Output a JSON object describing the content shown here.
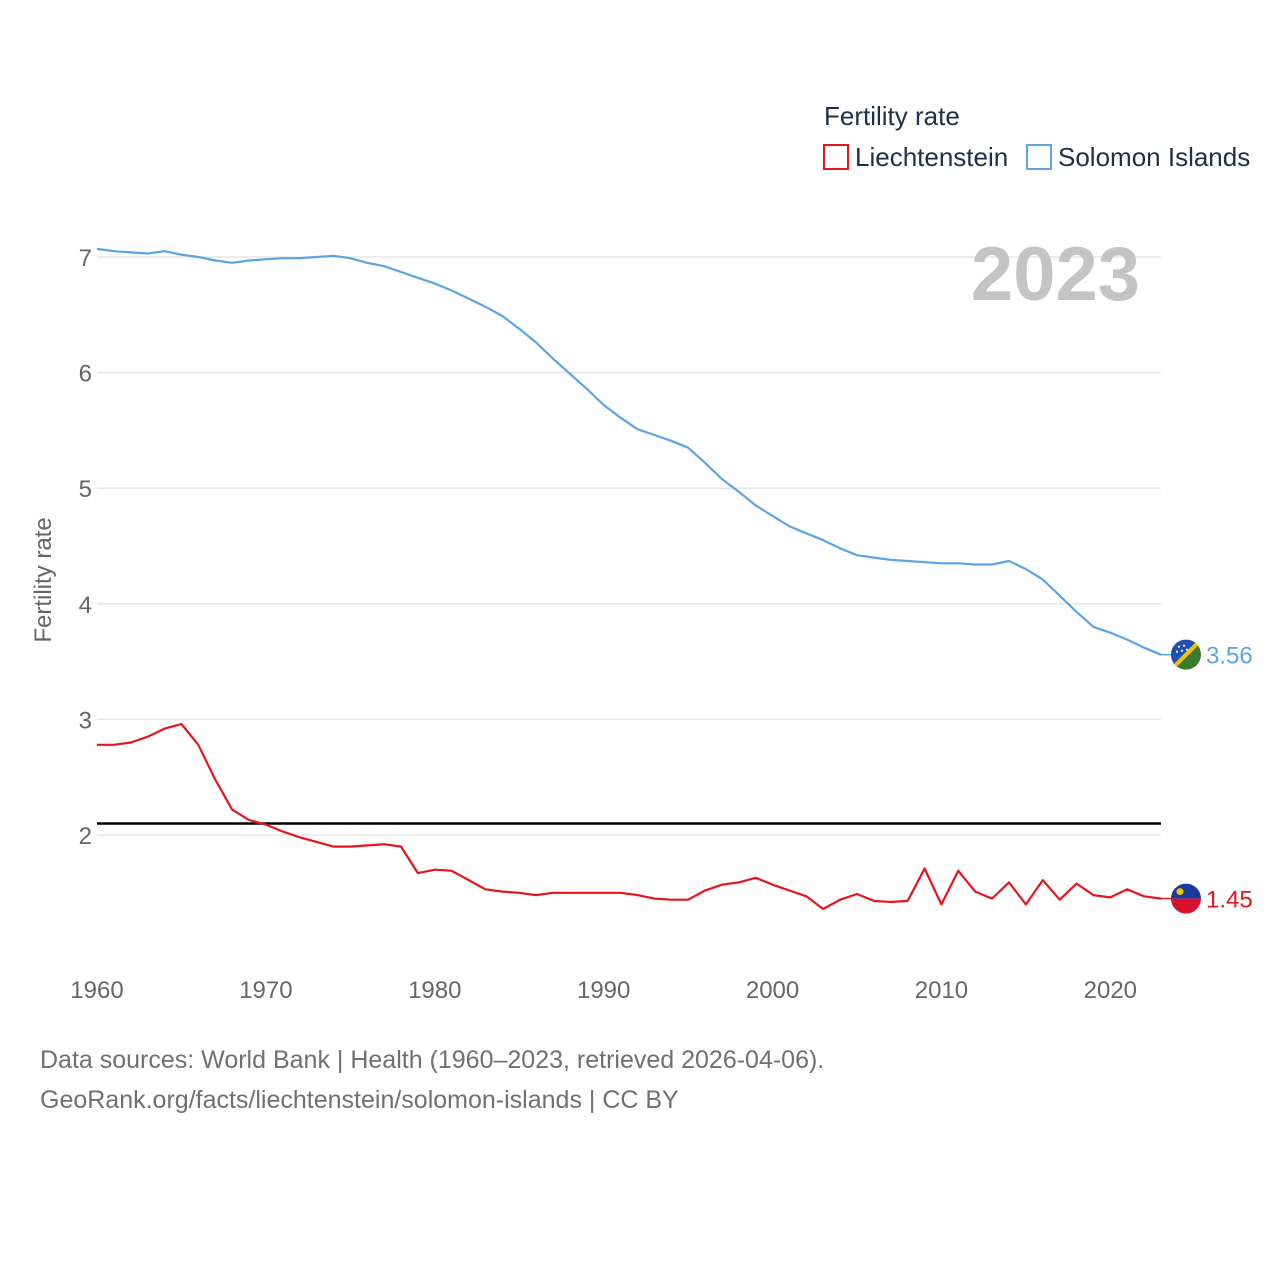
{
  "chart_data": {
    "type": "line",
    "title": "Fertility rate",
    "ylabel": "Fertility rate",
    "xlabel": "",
    "xlim": [
      1960,
      2023
    ],
    "ylim": [
      1,
      7.5
    ],
    "x_ticks": [
      1960,
      1970,
      1980,
      1990,
      2000,
      2010,
      2020
    ],
    "y_ticks": [
      2,
      3,
      4,
      5,
      6,
      7
    ],
    "grid": true,
    "legend_position": "top-right",
    "year_label": "2023",
    "reference_line": {
      "y": 2.1,
      "color": "#000000"
    },
    "x": [
      1960,
      1961,
      1962,
      1963,
      1964,
      1965,
      1966,
      1967,
      1968,
      1969,
      1970,
      1971,
      1972,
      1973,
      1974,
      1975,
      1976,
      1977,
      1978,
      1979,
      1980,
      1981,
      1982,
      1983,
      1984,
      1985,
      1986,
      1987,
      1988,
      1989,
      1990,
      1991,
      1992,
      1993,
      1994,
      1995,
      1996,
      1997,
      1998,
      1999,
      2000,
      2001,
      2002,
      2003,
      2004,
      2005,
      2006,
      2007,
      2008,
      2009,
      2010,
      2011,
      2012,
      2013,
      2014,
      2015,
      2016,
      2017,
      2018,
      2019,
      2020,
      2021,
      2022,
      2023
    ],
    "series": [
      {
        "name": "Liechtenstein",
        "color": "#e8141c",
        "end_label": "1.45",
        "flag": "liechtenstein-flag",
        "values": [
          2.78,
          2.78,
          2.8,
          2.85,
          2.92,
          2.96,
          2.78,
          2.48,
          2.22,
          2.13,
          2.09,
          2.03,
          1.98,
          1.94,
          1.9,
          1.9,
          1.91,
          1.92,
          1.9,
          1.67,
          1.7,
          1.69,
          1.61,
          1.53,
          1.51,
          1.5,
          1.48,
          1.5,
          1.5,
          1.5,
          1.5,
          1.5,
          1.48,
          1.45,
          1.44,
          1.44,
          1.52,
          1.57,
          1.59,
          1.63,
          1.57,
          1.52,
          1.47,
          1.36,
          1.44,
          1.49,
          1.43,
          1.42,
          1.43,
          1.71,
          1.4,
          1.69,
          1.51,
          1.45,
          1.59,
          1.4,
          1.61,
          1.44,
          1.58,
          1.48,
          1.46,
          1.53,
          1.47,
          1.45
        ]
      },
      {
        "name": "Solomon Islands",
        "color": "#5ba4e6",
        "end_label": "3.56",
        "flag": "solomon-islands-flag",
        "values": [
          7.07,
          7.05,
          7.04,
          7.03,
          7.05,
          7.02,
          7.0,
          6.97,
          6.95,
          6.97,
          6.98,
          6.99,
          6.99,
          7.0,
          7.01,
          6.99,
          6.95,
          6.92,
          6.87,
          6.82,
          6.77,
          6.71,
          6.64,
          6.57,
          6.49,
          6.38,
          6.26,
          6.12,
          5.99,
          5.86,
          5.72,
          5.61,
          5.51,
          5.46,
          5.41,
          5.35,
          5.22,
          5.08,
          4.97,
          4.85,
          4.76,
          4.67,
          4.61,
          4.55,
          4.48,
          4.42,
          4.4,
          4.38,
          4.37,
          4.36,
          4.35,
          4.35,
          4.34,
          4.34,
          4.37,
          4.3,
          4.21,
          4.07,
          3.93,
          3.8,
          3.75,
          3.69,
          3.62,
          3.56
        ]
      }
    ]
  },
  "source_line1": "Data sources: World Bank | Health (1960–2023, retrieved 2026-04-06).",
  "source_line2": "GeoRank.org/facts/liechtenstein/solomon-islands | CC BY"
}
